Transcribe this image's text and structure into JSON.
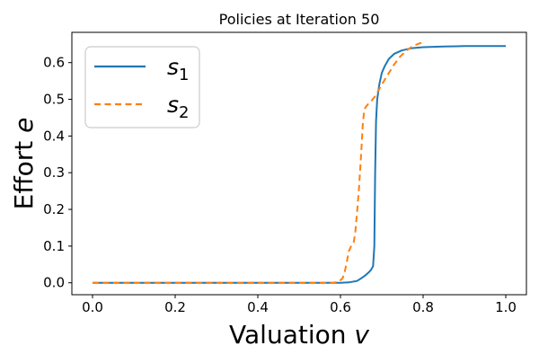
{
  "chart_data": {
    "type": "line",
    "title": "Policies at Iteration 50",
    "xlabel_text": "Valuation ",
    "xlabel_var": "v",
    "ylabel_text": "Effort ",
    "ylabel_var": "e",
    "xlim": [
      -0.05,
      1.05
    ],
    "ylim": [
      -0.0325,
      0.6825
    ],
    "xticks": [
      0.0,
      0.2,
      0.4,
      0.6,
      0.8,
      1.0
    ],
    "yticks": [
      0.0,
      0.1,
      0.2,
      0.3,
      0.4,
      0.5,
      0.6
    ],
    "grid": false,
    "legend_position": "upper left",
    "colors": {
      "series1": "#1f77b4",
      "series2": "#ff7f0e",
      "axis": "#000000",
      "legend_border": "#cccccc"
    },
    "series": [
      {
        "label_base": "s",
        "label_sub": "1",
        "color": "#1f77b4",
        "style": "solid",
        "points": [
          [
            0.0,
            0.0
          ],
          [
            0.05,
            0.0
          ],
          [
            0.1,
            0.0
          ],
          [
            0.15,
            0.0
          ],
          [
            0.2,
            0.0
          ],
          [
            0.25,
            0.0
          ],
          [
            0.3,
            0.0
          ],
          [
            0.35,
            0.0
          ],
          [
            0.4,
            0.0
          ],
          [
            0.45,
            0.0
          ],
          [
            0.5,
            0.0
          ],
          [
            0.55,
            0.0
          ],
          [
            0.6,
            0.0
          ],
          [
            0.62,
            0.001
          ],
          [
            0.64,
            0.005
          ],
          [
            0.65,
            0.012
          ],
          [
            0.66,
            0.02
          ],
          [
            0.668,
            0.028
          ],
          [
            0.674,
            0.035
          ],
          [
            0.679,
            0.045
          ],
          [
            0.682,
            0.1
          ],
          [
            0.684,
            0.3
          ],
          [
            0.686,
            0.44
          ],
          [
            0.689,
            0.5
          ],
          [
            0.694,
            0.54
          ],
          [
            0.7,
            0.572
          ],
          [
            0.707,
            0.59
          ],
          [
            0.717,
            0.61
          ],
          [
            0.73,
            0.624
          ],
          [
            0.748,
            0.633
          ],
          [
            0.77,
            0.639
          ],
          [
            0.8,
            0.642
          ],
          [
            0.85,
            0.644
          ],
          [
            0.9,
            0.645
          ],
          [
            0.95,
            0.645
          ],
          [
            1.0,
            0.645
          ]
        ]
      },
      {
        "label_base": "s",
        "label_sub": "2",
        "color": "#ff7f0e",
        "style": "dashed",
        "points": [
          [
            0.0,
            0.0
          ],
          [
            0.05,
            0.0
          ],
          [
            0.1,
            0.0
          ],
          [
            0.15,
            0.0
          ],
          [
            0.2,
            0.0
          ],
          [
            0.25,
            0.0
          ],
          [
            0.3,
            0.0
          ],
          [
            0.35,
            0.0
          ],
          [
            0.4,
            0.0
          ],
          [
            0.45,
            0.0
          ],
          [
            0.5,
            0.0
          ],
          [
            0.55,
            0.0
          ],
          [
            0.58,
            0.0
          ],
          [
            0.595,
            0.002
          ],
          [
            0.605,
            0.012
          ],
          [
            0.61,
            0.028
          ],
          [
            0.615,
            0.055
          ],
          [
            0.62,
            0.085
          ],
          [
            0.627,
            0.103
          ],
          [
            0.632,
            0.11
          ],
          [
            0.636,
            0.14
          ],
          [
            0.64,
            0.19
          ],
          [
            0.645,
            0.26
          ],
          [
            0.65,
            0.35
          ],
          [
            0.654,
            0.43
          ],
          [
            0.657,
            0.465
          ],
          [
            0.66,
            0.477
          ],
          [
            0.667,
            0.487
          ],
          [
            0.675,
            0.496
          ],
          [
            0.685,
            0.51
          ],
          [
            0.7,
            0.54
          ],
          [
            0.715,
            0.568
          ],
          [
            0.73,
            0.595
          ],
          [
            0.745,
            0.617
          ],
          [
            0.76,
            0.633
          ],
          [
            0.775,
            0.645
          ],
          [
            0.79,
            0.652
          ],
          [
            0.8,
            0.655
          ]
        ]
      }
    ]
  }
}
